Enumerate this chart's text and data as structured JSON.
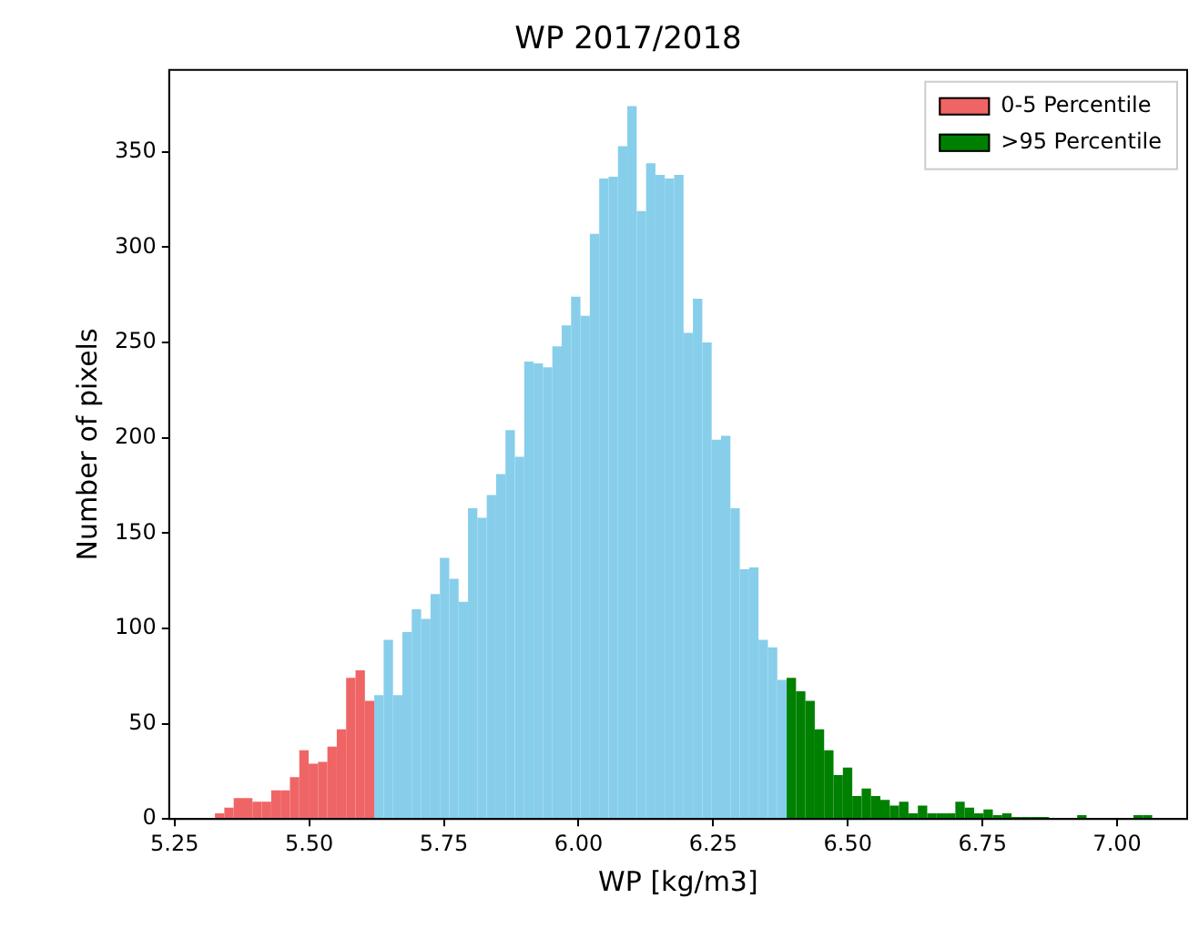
{
  "chart_data": {
    "type": "histogram",
    "title": "WP 2017/2018",
    "xlabel": "WP [kg/m3]",
    "ylabel": "Number of pixels",
    "bins": [
      5.325,
      5.3424,
      5.3598,
      5.3772,
      5.3946,
      5.412,
      5.4294,
      5.4468,
      5.4642,
      5.4816,
      5.499,
      5.5164,
      5.5338,
      5.5512,
      5.5686,
      5.586,
      5.6034,
      5.6208,
      5.6382,
      5.6556,
      5.673,
      5.6904,
      5.7078,
      5.7252,
      5.7426,
      5.76,
      5.7774,
      5.7948,
      5.8122,
      5.8296,
      5.847,
      5.8644,
      5.8818,
      5.8992,
      5.9166,
      5.934,
      5.9514,
      5.9688,
      5.9862,
      6.0036,
      6.021,
      6.0384,
      6.0558,
      6.0732,
      6.0906,
      6.108,
      6.1254,
      6.1428,
      6.1602,
      6.1776,
      6.195,
      6.2124,
      6.2298,
      6.2472,
      6.2646,
      6.282,
      6.2994,
      6.3168,
      6.3342,
      6.3516,
      6.369,
      6.3864,
      6.4038,
      6.4212,
      6.4386,
      6.456,
      6.4734,
      6.4908,
      6.5082,
      6.5256,
      6.543,
      6.5604,
      6.5778,
      6.5952,
      6.6126,
      6.63,
      6.6474,
      6.6648,
      6.6822,
      6.6996,
      6.717,
      6.7344,
      6.7518,
      6.7692,
      6.7866,
      6.804,
      6.8214,
      6.8388,
      6.8562,
      6.8736,
      6.891,
      6.9084,
      6.9258,
      6.9432,
      6.9606,
      6.978,
      6.9954,
      7.0128,
      7.0302,
      7.0476,
      7.065
    ],
    "series": [
      {
        "name": "0-5 Percentile",
        "color": "#ef6565",
        "values": [
          3,
          6,
          11,
          11,
          9,
          9,
          15,
          15,
          22,
          36,
          29,
          30,
          38,
          47,
          74,
          78,
          62,
          null,
          null,
          null,
          null,
          null,
          null,
          null,
          null,
          null,
          null,
          null,
          null,
          null,
          null,
          null,
          null,
          null,
          null,
          null,
          null,
          null,
          null,
          null,
          null,
          null,
          null,
          null,
          null,
          null,
          null,
          null,
          null,
          null,
          null,
          null,
          null,
          null,
          null,
          null,
          null,
          null,
          null,
          null,
          null,
          null,
          null,
          null,
          null,
          null,
          null,
          null,
          null,
          null,
          null,
          null,
          null,
          null,
          null,
          null,
          null,
          null,
          null,
          null,
          null,
          null,
          null,
          null,
          null,
          null,
          null,
          null,
          null,
          null,
          null,
          null,
          null,
          null,
          null,
          null,
          null,
          null,
          null,
          null
        ]
      },
      {
        "color": "#87ceeb",
        "values": [
          null,
          null,
          null,
          null,
          null,
          null,
          null,
          null,
          null,
          null,
          null,
          null,
          null,
          null,
          null,
          null,
          null,
          65,
          94,
          65,
          98,
          110,
          105,
          118,
          137,
          126,
          114,
          163,
          158,
          170,
          181,
          204,
          190,
          240,
          239,
          237,
          248,
          259,
          274,
          264,
          307,
          336,
          337,
          353,
          374,
          319,
          344,
          338,
          336,
          338,
          255,
          273,
          250,
          199,
          201,
          163,
          131,
          132,
          94,
          90,
          73,
          null,
          null,
          null,
          null,
          null,
          null,
          null,
          null,
          null,
          null,
          null,
          null,
          null,
          null,
          null,
          null,
          null,
          null,
          null,
          null,
          null,
          null,
          null,
          null,
          null,
          null,
          null,
          null,
          null,
          null,
          null,
          null,
          null,
          null,
          null,
          null,
          null,
          null,
          null
        ]
      },
      {
        "name": ">95 Percentile",
        "color": "#008000",
        "values": [
          null,
          null,
          null,
          null,
          null,
          null,
          null,
          null,
          null,
          null,
          null,
          null,
          null,
          null,
          null,
          null,
          null,
          null,
          null,
          null,
          null,
          null,
          null,
          null,
          null,
          null,
          null,
          null,
          null,
          null,
          null,
          null,
          null,
          null,
          null,
          null,
          null,
          null,
          null,
          null,
          null,
          null,
          null,
          null,
          null,
          null,
          null,
          null,
          null,
          null,
          null,
          null,
          null,
          null,
          null,
          null,
          null,
          null,
          null,
          null,
          null,
          74,
          67,
          62,
          47,
          36,
          23,
          27,
          12,
          16,
          12,
          10,
          7,
          9,
          3,
          7,
          3,
          3,
          3,
          9,
          6,
          3,
          5,
          2,
          3,
          1,
          1,
          1,
          1,
          0,
          0,
          0,
          2,
          0,
          0,
          0,
          0,
          0,
          2,
          2
        ]
      }
    ],
    "xlim": [
      5.24,
      7.13
    ],
    "ylim": [
      0,
      393
    ],
    "xticks": [
      {
        "value": 5.25,
        "label": "5.25"
      },
      {
        "value": 5.5,
        "label": "5.50"
      },
      {
        "value": 5.75,
        "label": "5.75"
      },
      {
        "value": 6,
        "label": "6.00"
      },
      {
        "value": 6.25,
        "label": "6.25"
      },
      {
        "value": 6.5,
        "label": "6.50"
      },
      {
        "value": 6.75,
        "label": "6.75"
      },
      {
        "value": 7,
        "label": "7.00"
      }
    ],
    "yticks": [
      0,
      50,
      100,
      150,
      200,
      250,
      300,
      350
    ],
    "legend": "top right"
  }
}
